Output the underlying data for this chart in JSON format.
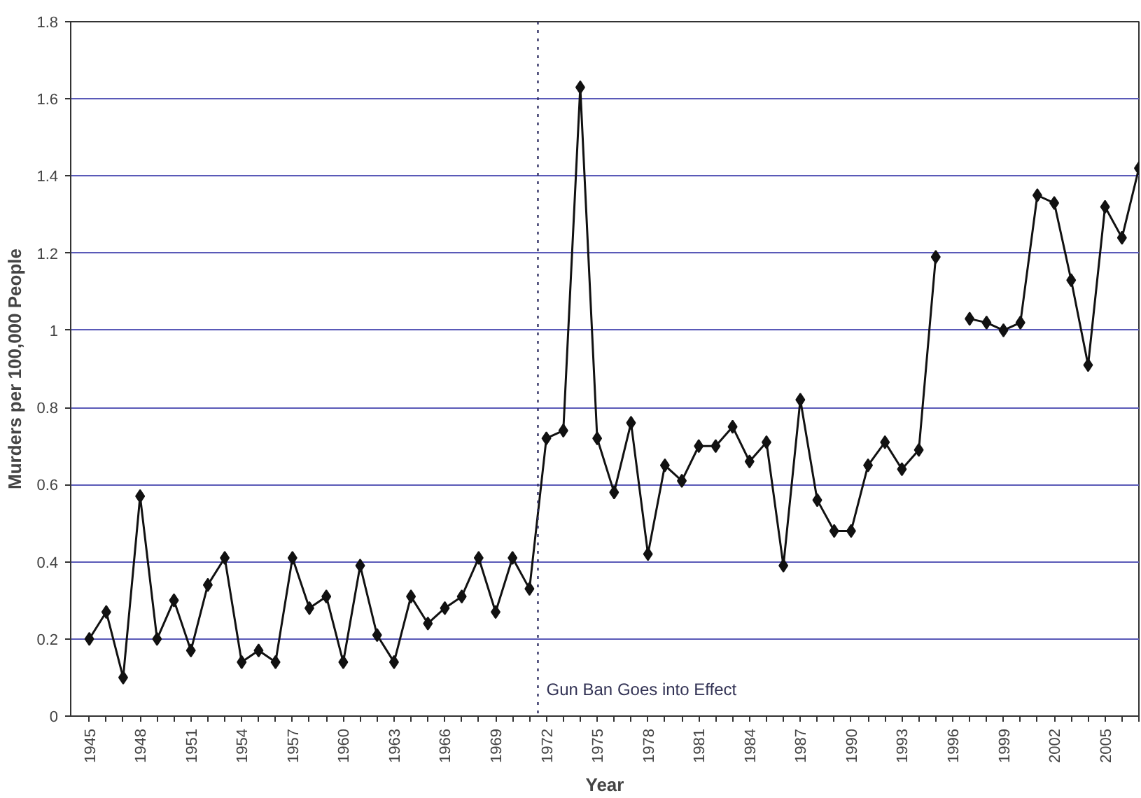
{
  "chart_data": {
    "type": "line",
    "xlabel": "Year",
    "ylabel": "Murders per 100,000 People",
    "x": [
      1945,
      1946,
      1947,
      1948,
      1949,
      1950,
      1951,
      1952,
      1953,
      1954,
      1955,
      1956,
      1957,
      1958,
      1959,
      1960,
      1961,
      1962,
      1963,
      1964,
      1965,
      1966,
      1967,
      1968,
      1969,
      1970,
      1971,
      1972,
      1973,
      1974,
      1975,
      1976,
      1977,
      1978,
      1979,
      1980,
      1981,
      1982,
      1983,
      1984,
      1985,
      1986,
      1987,
      1988,
      1989,
      1990,
      1991,
      1992,
      1993,
      1994,
      1995,
      1996,
      1997,
      1998,
      1999,
      2000,
      2001,
      2002,
      2003,
      2004,
      2005,
      2006,
      2007
    ],
    "series": [
      {
        "color": "#111111",
        "values": [
          0.2,
          0.27,
          0.1,
          0.57,
          0.2,
          0.3,
          0.17,
          0.34,
          0.41,
          0.14,
          0.17,
          0.14,
          0.41,
          0.28,
          0.31,
          0.14,
          0.39,
          0.21,
          0.14,
          0.31,
          0.24,
          0.28,
          0.31,
          0.41,
          0.27,
          0.41,
          0.33,
          0.72,
          0.74,
          1.63,
          0.72,
          0.58,
          0.76,
          0.42,
          0.65,
          0.61,
          0.7,
          0.7,
          0.75,
          0.66,
          0.71,
          0.39,
          0.82,
          0.56,
          0.48,
          0.48,
          0.65,
          0.71,
          0.64,
          0.69,
          1.19,
          null,
          1.03,
          1.02,
          1.0,
          1.02,
          1.35,
          1.33,
          1.13,
          0.91,
          1.32,
          1.24,
          1.42
        ]
      }
    ],
    "xlim": [
      1943.9,
      2007
    ],
    "xticks": [
      1945,
      {
        "value": 1946,
        "label": null
      },
      {
        "value": 1947,
        "label": null
      },
      1948,
      {
        "value": 1949,
        "label": null
      },
      {
        "value": 1950,
        "label": null
      },
      1951,
      {
        "value": 1952,
        "label": null
      },
      {
        "value": 1953,
        "label": null
      },
      1954,
      {
        "value": 1955,
        "label": null
      },
      {
        "value": 1956,
        "label": null
      },
      1957,
      {
        "value": 1958,
        "label": null
      },
      {
        "value": 1959,
        "label": null
      },
      1960,
      {
        "value": 1961,
        "label": null
      },
      {
        "value": 1962,
        "label": null
      },
      1963,
      {
        "value": 1964,
        "label": null
      },
      {
        "value": 1965,
        "label": null
      },
      1966,
      {
        "value": 1967,
        "label": null
      },
      {
        "value": 1968,
        "label": null
      },
      1969,
      {
        "value": 1970,
        "label": null
      },
      {
        "value": 1971,
        "label": null
      },
      1972,
      {
        "value": 1973,
        "label": null
      },
      {
        "value": 1974,
        "label": null
      },
      1975,
      {
        "value": 1976,
        "label": null
      },
      {
        "value": 1977,
        "label": null
      },
      1978,
      {
        "value": 1979,
        "label": null
      },
      {
        "value": 1980,
        "label": null
      },
      1981,
      {
        "value": 1982,
        "label": null
      },
      {
        "value": 1983,
        "label": null
      },
      1984,
      {
        "value": 1985,
        "label": null
      },
      {
        "value": 1986,
        "label": null
      },
      1987,
      {
        "value": 1988,
        "label": null
      },
      {
        "value": 1989,
        "label": null
      },
      1990,
      {
        "value": 1991,
        "label": null
      },
      {
        "value": 1992,
        "label": null
      },
      1993,
      {
        "value": 1994,
        "label": null
      },
      {
        "value": 1995,
        "label": null
      },
      1996,
      {
        "value": 1997,
        "label": null
      },
      {
        "value": 1998,
        "label": null
      },
      1999,
      {
        "value": 2000,
        "label": null
      },
      {
        "value": 2001,
        "label": null
      },
      2002,
      {
        "value": 2003,
        "label": null
      },
      {
        "value": 2004,
        "label": null
      },
      2005,
      {
        "value": 2006,
        "label": null
      },
      {
        "value": 2007,
        "label": null
      }
    ],
    "ylim": [
      0,
      1.8
    ],
    "yticks": [
      0,
      0.2,
      0.4,
      0.6,
      0.8,
      1,
      1.2,
      1.4,
      1.6,
      1.8
    ],
    "grid": "y",
    "marker": "diamond",
    "line_style": "solid",
    "ref_lines": [
      {
        "axis": "x",
        "value": 1971.5,
        "label": "Gun Ban Goes into Effect",
        "color": "#333366",
        "line_style": "dotted"
      }
    ]
  }
}
